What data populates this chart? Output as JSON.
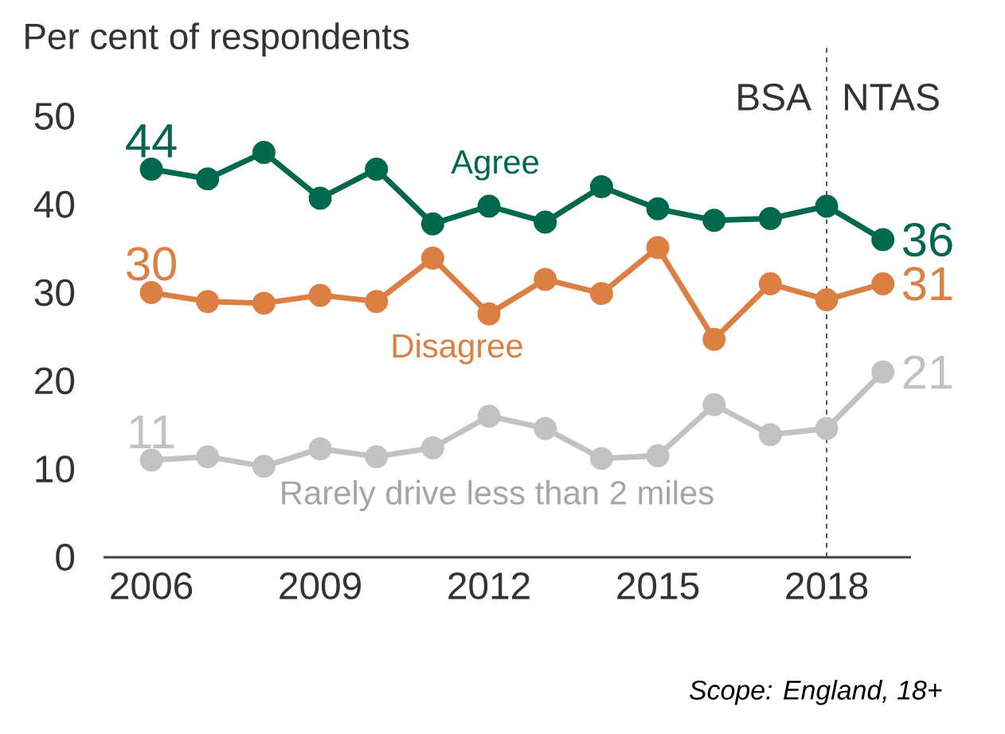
{
  "chart_data": {
    "type": "line",
    "ylabel": "Per cent of respondents",
    "x": [
      2006,
      2007,
      2008,
      2009,
      2010,
      2011,
      2012,
      2013,
      2014,
      2015,
      2016,
      2017,
      2018,
      2019
    ],
    "xlim": [
      2005.15,
      2019.5
    ],
    "xticks": [
      2006,
      2009,
      2012,
      2015,
      2018
    ],
    "ylim": [
      0,
      50
    ],
    "yticks": [
      0,
      10,
      20,
      30,
      40,
      50
    ],
    "series": [
      {
        "name": "Agree",
        "color": "#00694d",
        "values": [
          44,
          42.9,
          45.9,
          40.7,
          44,
          37.8,
          39.8,
          38,
          42,
          39.5,
          38.2,
          38.4,
          39.8,
          36
        ],
        "value_labels": [
          "44",
          null,
          null,
          null,
          null,
          null,
          null,
          null,
          null,
          null,
          null,
          null,
          null,
          "36"
        ]
      },
      {
        "name": "Disagree",
        "color": "#dc7f43",
        "values": [
          30,
          29,
          28.8,
          29.7,
          29,
          33.9,
          27.6,
          31.5,
          29.9,
          35.1,
          24.7,
          31,
          29.2,
          31
        ],
        "value_labels": [
          "30",
          null,
          null,
          null,
          null,
          null,
          null,
          null,
          null,
          null,
          null,
          null,
          null,
          "31"
        ]
      },
      {
        "name": "Rarely drive less than 2 miles",
        "color": "#c2c2c2",
        "values": [
          11,
          11.4,
          10.3,
          12.3,
          11.4,
          12.4,
          16,
          14.6,
          11.2,
          11.5,
          17.3,
          13.9,
          14.6,
          21
        ],
        "value_labels": [
          "11",
          null,
          null,
          null,
          null,
          null,
          null,
          null,
          null,
          null,
          null,
          null,
          null,
          "21"
        ]
      }
    ],
    "ref_lines": [
      {
        "axis": "x",
        "value": 2018,
        "line_style": "dashed",
        "color": "#555555"
      }
    ],
    "annotations": [
      "BSA",
      "NTAS",
      "Scope: England, 18+"
    ],
    "marker": "circle",
    "line_style": "solid"
  }
}
